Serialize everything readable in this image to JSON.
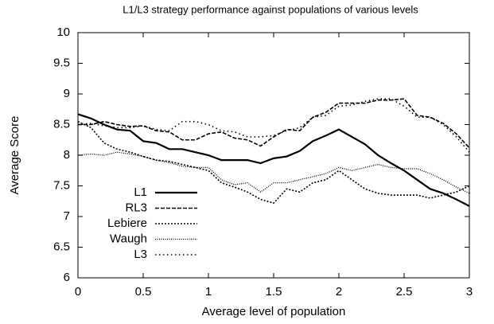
{
  "chart_data": {
    "type": "line",
    "title": "L1/L3 strategy performance against populations of various levels",
    "x_label": "Average level of population",
    "y_label": "Average Score",
    "x": [
      0,
      0.1,
      0.2,
      0.3,
      0.4,
      0.5,
      0.6,
      0.7,
      0.8,
      0.9,
      1.0,
      1.1,
      1.2,
      1.3,
      1.4,
      1.5,
      1.6,
      1.7,
      1.8,
      1.9,
      2.0,
      2.1,
      2.2,
      2.3,
      2.4,
      2.5,
      2.6,
      2.7,
      2.8,
      2.9,
      3.0
    ],
    "series": [
      {
        "name": "L1",
        "color": "#000000",
        "dash": "solid",
        "values": [
          8.67,
          8.6,
          8.5,
          8.42,
          8.4,
          8.23,
          8.2,
          8.1,
          8.1,
          8.05,
          8.0,
          7.92,
          7.92,
          7.92,
          7.87,
          7.95,
          7.98,
          8.07,
          8.23,
          8.32,
          8.42,
          8.3,
          8.18,
          8.0,
          7.87,
          7.75,
          7.6,
          7.45,
          7.38,
          7.28,
          7.17
        ]
      },
      {
        "name": "RL3",
        "color": "#000000",
        "dash": "dashed",
        "values": [
          8.5,
          8.5,
          8.55,
          8.5,
          8.47,
          8.48,
          8.4,
          8.38,
          8.25,
          8.25,
          8.35,
          8.38,
          8.28,
          8.25,
          8.15,
          8.3,
          8.42,
          8.4,
          8.62,
          8.7,
          8.85,
          8.85,
          8.85,
          8.9,
          8.9,
          8.92,
          8.65,
          8.62,
          8.52,
          8.35,
          8.12
        ]
      },
      {
        "name": "Lebiere",
        "color": "#000000",
        "dash": "dotted",
        "values": [
          8.55,
          8.45,
          8.2,
          8.1,
          8.05,
          7.98,
          7.92,
          7.9,
          7.85,
          7.8,
          7.75,
          7.55,
          7.48,
          7.4,
          7.28,
          7.22,
          7.45,
          7.4,
          7.55,
          7.6,
          7.75,
          7.6,
          7.45,
          7.38,
          7.35,
          7.35,
          7.35,
          7.3,
          7.35,
          7.4,
          7.5
        ]
      },
      {
        "name": "Waugh",
        "color": "#000000",
        "dash": "fine",
        "values": [
          8.0,
          8.02,
          8.0,
          8.05,
          8.02,
          7.98,
          7.92,
          7.88,
          7.82,
          7.8,
          7.8,
          7.6,
          7.52,
          7.55,
          7.4,
          7.55,
          7.55,
          7.6,
          7.65,
          7.7,
          7.8,
          7.75,
          7.8,
          7.85,
          7.8,
          7.78,
          7.78,
          7.7,
          7.6,
          7.48,
          7.38
        ]
      },
      {
        "name": "L3",
        "color": "#000000",
        "dash": "sparse",
        "values": [
          8.5,
          8.52,
          8.48,
          8.45,
          8.45,
          8.48,
          8.42,
          8.4,
          8.55,
          8.55,
          8.5,
          8.4,
          8.38,
          8.3,
          8.3,
          8.32,
          8.4,
          8.45,
          8.62,
          8.65,
          8.8,
          8.82,
          8.88,
          8.92,
          8.92,
          8.8,
          8.62,
          8.62,
          8.5,
          8.3,
          8.05
        ]
      }
    ],
    "xlim": [
      0,
      3
    ],
    "xticks": [
      0,
      0.5,
      1,
      1.5,
      2,
      2.5,
      3
    ],
    "ylim": [
      6,
      10
    ],
    "yticks": [
      6,
      6.5,
      7,
      7.5,
      8,
      8.5,
      9,
      9.5,
      10
    ],
    "legend": "lower-left"
  }
}
